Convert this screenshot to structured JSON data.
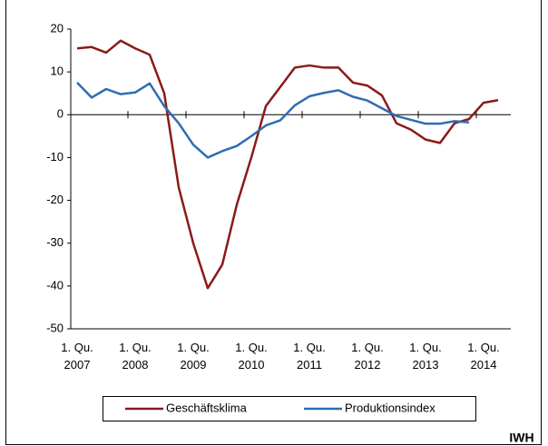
{
  "chart_data": {
    "type": "line",
    "categories": [
      "1. Qu. 2007",
      null,
      null,
      null,
      "1. Qu. 2008",
      null,
      null,
      null,
      "1. Qu. 2009",
      null,
      null,
      null,
      "1. Qu. 2010",
      null,
      null,
      null,
      "1. Qu. 2011",
      null,
      null,
      null,
      "1. Qu. 2012",
      null,
      null,
      null,
      "1. Qu. 2013",
      null,
      null,
      null,
      "1. Qu. 2014",
      null
    ],
    "series": [
      {
        "name": "Geschäftsklima",
        "color": "#8b1a1a",
        "values": [
          15.5,
          15.8,
          14.5,
          17.3,
          15.5,
          14,
          5,
          -17,
          -30,
          -40.5,
          -35,
          -21,
          -10,
          2,
          6.5,
          11,
          11.5,
          11,
          11,
          7.5,
          6.8,
          4.5,
          -2,
          -3.5,
          -5.8,
          -6.6,
          -2,
          -1,
          2.8,
          3.4
        ]
      },
      {
        "name": "Produktionsindex",
        "color": "#2e6db4",
        "values": [
          7.5,
          4,
          6,
          4.8,
          5.2,
          7.3,
          2,
          -2,
          -7,
          -10,
          -8.5,
          -7.3,
          -5,
          -2.5,
          -1.3,
          2.2,
          4.3,
          5.1,
          5.7,
          4.2,
          3.3,
          1.5,
          -0.3,
          -1.2,
          -2.1,
          -2.1,
          -1.5,
          -1.8,
          null,
          null
        ]
      }
    ],
    "ylim": [
      -50,
      20
    ],
    "yticks": [
      -50,
      -40,
      -30,
      -20,
      -10,
      0,
      10,
      20
    ],
    "source": "IWH"
  }
}
